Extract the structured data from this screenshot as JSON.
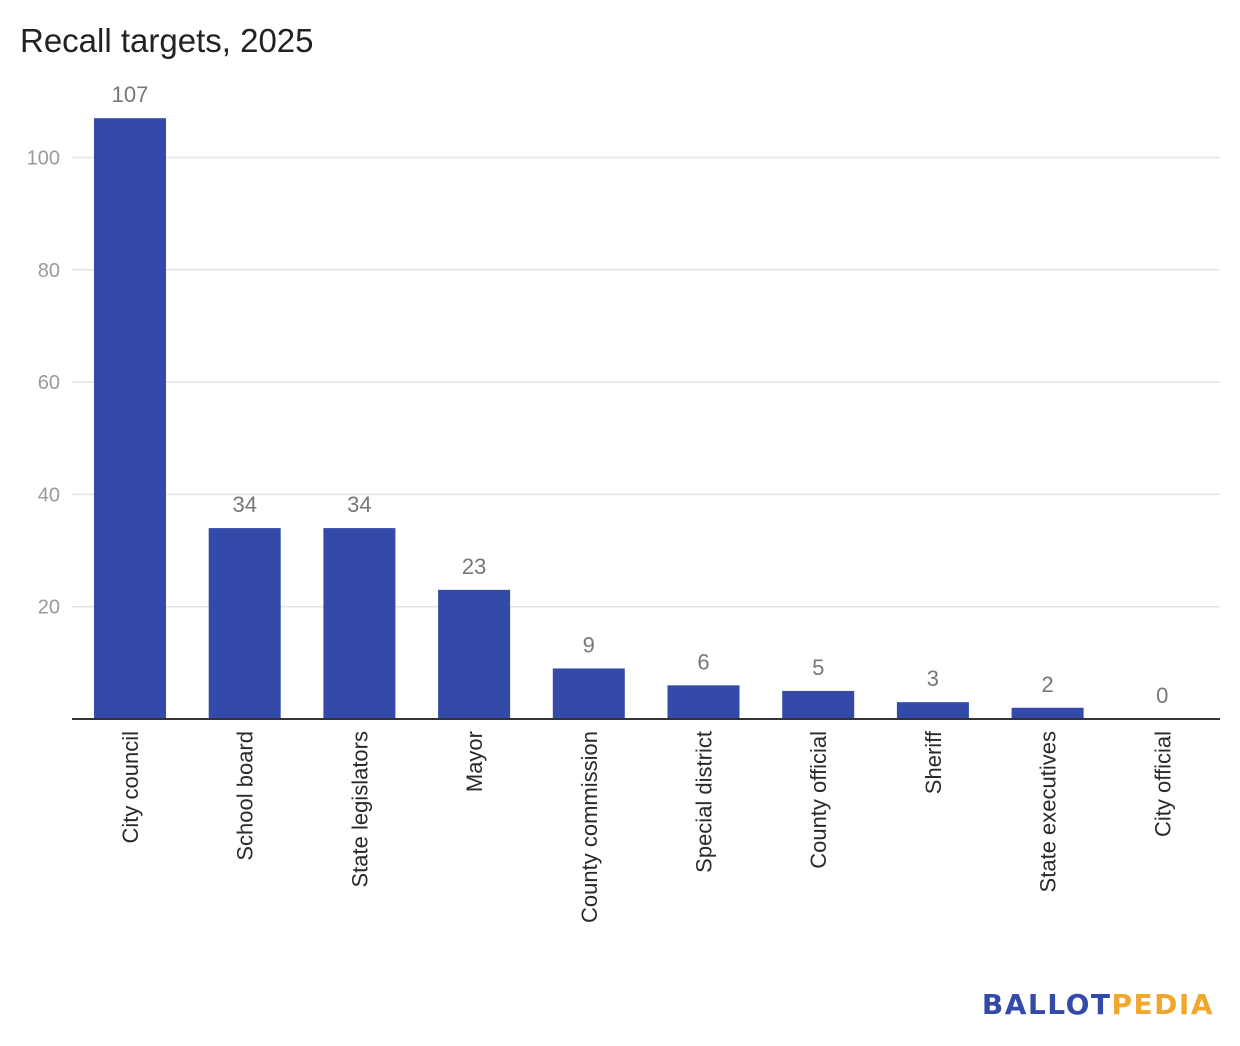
{
  "colors": {
    "bar": "#334aa8",
    "grid": "#e4e4e4",
    "axis": "#333333",
    "tick_text": "#9a9a9a",
    "value_text": "#777777",
    "category_text": "#2a2a2a",
    "brand_primary": "#334aa8",
    "brand_secondary": "#f0a72c"
  },
  "brand": {
    "part1": "BALLOT",
    "part2": "PEDIA"
  },
  "chart_data": {
    "type": "bar",
    "title": "Recall targets, 2025",
    "xlabel": "",
    "ylabel": "",
    "ylim": [
      0,
      107
    ],
    "yticks": [
      20,
      40,
      60,
      80,
      100
    ],
    "grid": true,
    "legend": "none",
    "categories": [
      "City council",
      "School board",
      "State legislators",
      "Mayor",
      "County commission",
      "Special district",
      "County official",
      "Sheriff",
      "State executives",
      "City official"
    ],
    "values": [
      107,
      34,
      34,
      23,
      9,
      6,
      5,
      3,
      2,
      0
    ]
  }
}
